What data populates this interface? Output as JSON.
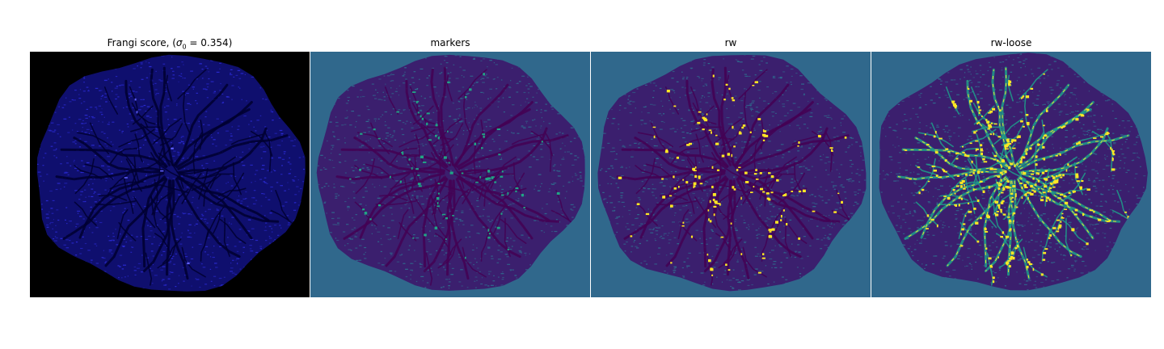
{
  "figure": {
    "panels": [
      {
        "title_prefix": "Frangi score, (",
        "title_symbol": "σ",
        "title_subscript": "0",
        "title_suffix": " = 0.354)",
        "background_color": "#000000",
        "disc_color": "#0f0f6e",
        "texture_color": "#2a2ad0",
        "vessel_color": "#000030",
        "highlight_color": "#6060ff"
      },
      {
        "title": "markers",
        "background_color": "#30688c",
        "disc_color": "#3b1f6e",
        "texture_color": "#2f6b8e",
        "vessel_color": "#440154",
        "highlight_color": "#21a585"
      },
      {
        "title": "rw",
        "background_color": "#30688c",
        "disc_color": "#3b1f6e",
        "texture_color": "#2f6b8e",
        "vessel_color": "#440154",
        "highlight_color": "#fde725"
      },
      {
        "title": "rw-loose",
        "background_color": "#30688c",
        "disc_color": "#3b1f6e",
        "texture_color": "#2f6b8e",
        "vessel_color": "#1f9e89",
        "highlight_color": "#fde725"
      }
    ]
  }
}
